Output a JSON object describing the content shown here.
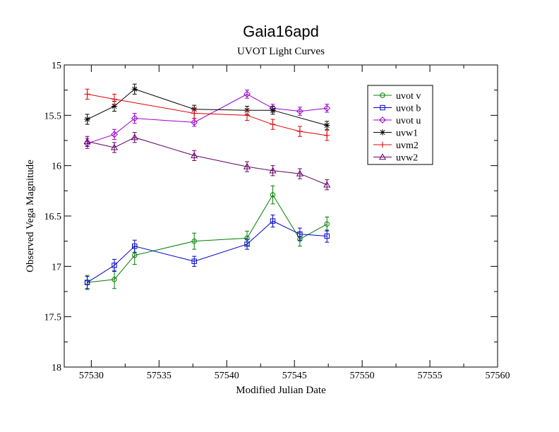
{
  "chart_data": {
    "type": "line",
    "title": "Gaia16apd",
    "subtitle": "UVOT Light Curves",
    "xlabel": "Modified Julian Date",
    "ylabel": "Observed Vega Magnitude",
    "xlim": [
      57528,
      57560
    ],
    "ylim": [
      15,
      18
    ],
    "y_inverted": true,
    "xticks": [
      "57530",
      "57535",
      "57540",
      "57545",
      "57550",
      "57555",
      "57560"
    ],
    "yticks": [
      "15",
      "15.5",
      "16",
      "16.5",
      "17",
      "17.5",
      "18"
    ],
    "grid": false,
    "legend_position": "top-right",
    "series": [
      {
        "name": "uvot v",
        "color": "#008000",
        "marker": "circle",
        "x": [
          57529.7,
          57531.7,
          57533.2,
          57537.6,
          57541.5,
          57543.4,
          57545.4,
          57547.4
        ],
        "y": [
          17.16,
          17.13,
          16.89,
          16.75,
          16.72,
          16.29,
          16.73,
          16.58
        ],
        "err": [
          0.07,
          0.09,
          0.09,
          0.08,
          0.07,
          0.09,
          0.07,
          0.07
        ]
      },
      {
        "name": "uvot b",
        "color": "#0000cc",
        "marker": "square",
        "x": [
          57529.7,
          57531.7,
          57533.2,
          57537.6,
          57541.5,
          57543.4,
          57545.4,
          57547.4
        ],
        "y": [
          17.16,
          16.99,
          16.8,
          16.95,
          16.78,
          16.55,
          16.68,
          16.7
        ],
        "err": [
          0.06,
          0.06,
          0.06,
          0.05,
          0.05,
          0.06,
          0.06,
          0.06
        ]
      },
      {
        "name": "uvot u",
        "color": "#9900cc",
        "marker": "diamond",
        "x": [
          57529.7,
          57531.7,
          57533.2,
          57537.6,
          57541.5,
          57543.4,
          57545.4,
          57547.4
        ],
        "y": [
          15.78,
          15.69,
          15.53,
          15.57,
          15.29,
          15.43,
          15.46,
          15.43
        ],
        "err": [
          0.05,
          0.05,
          0.05,
          0.04,
          0.04,
          0.04,
          0.04,
          0.04
        ]
      },
      {
        "name": "uvw1",
        "color": "#000000",
        "marker": "star",
        "x": [
          57529.7,
          57531.7,
          57533.2,
          57537.6,
          57541.5,
          57543.4,
          57547.4
        ],
        "y": [
          15.54,
          15.41,
          15.24,
          15.44,
          15.45,
          15.45,
          15.6
        ],
        "err": [
          0.05,
          0.05,
          0.05,
          0.04,
          0.04,
          0.04,
          0.04
        ]
      },
      {
        "name": "uvm2",
        "color": "#e00000",
        "marker": "plus",
        "x": [
          57529.7,
          57531.7,
          57537.6,
          57541.5,
          57543.4,
          57545.4,
          57547.4
        ],
        "y": [
          15.29,
          15.34,
          15.48,
          15.5,
          15.59,
          15.66,
          15.7
        ],
        "err": [
          0.05,
          0.05,
          0.05,
          0.05,
          0.05,
          0.05,
          0.05
        ]
      },
      {
        "name": "uvw2",
        "color": "#660066",
        "marker": "triangle",
        "x": [
          57529.7,
          57531.7,
          57533.2,
          57537.6,
          57541.5,
          57543.4,
          57545.4,
          57547.4
        ],
        "y": [
          15.76,
          15.82,
          15.72,
          15.9,
          16.01,
          16.05,
          16.08,
          16.19
        ],
        "err": [
          0.05,
          0.05,
          0.05,
          0.05,
          0.05,
          0.05,
          0.05,
          0.05
        ]
      }
    ]
  }
}
